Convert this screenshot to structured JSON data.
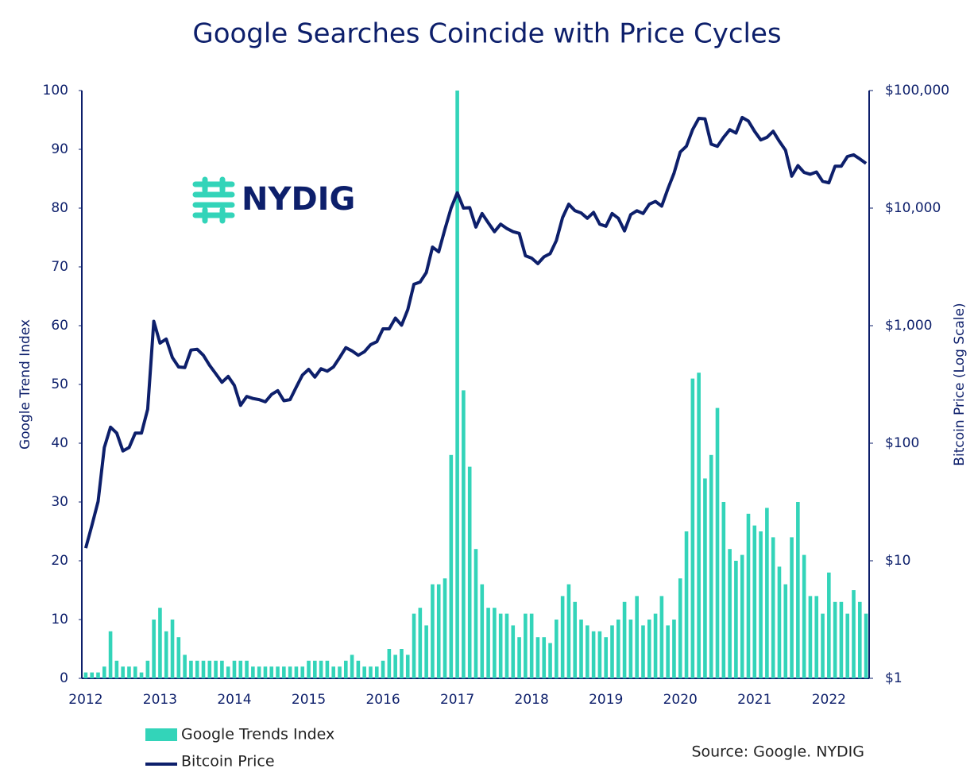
{
  "chart_data": {
    "type": "combo",
    "title": "Google Searches Coincide with Price Cycles",
    "logo": "NYDIG",
    "source": "Source: Google. NYDIG",
    "y_label": "Google Trend Index",
    "y2_label": "Bitcoin Price (Log Scale)",
    "categories": [
      "2012",
      null,
      null,
      null,
      null,
      null,
      null,
      null,
      null,
      null,
      null,
      null,
      "2013",
      null,
      null,
      null,
      null,
      null,
      null,
      null,
      null,
      null,
      null,
      null,
      "2014",
      null,
      null,
      null,
      null,
      null,
      null,
      null,
      null,
      null,
      null,
      null,
      "2015",
      null,
      null,
      null,
      null,
      null,
      null,
      null,
      null,
      null,
      null,
      null,
      "2016",
      null,
      null,
      null,
      null,
      null,
      null,
      null,
      null,
      null,
      null,
      null,
      "2017",
      null,
      null,
      null,
      null,
      null,
      null,
      null,
      null,
      null,
      null,
      null,
      "2018",
      null,
      null,
      null,
      null,
      null,
      null,
      null,
      null,
      null,
      null,
      null,
      "2019",
      null,
      null,
      null,
      null,
      null,
      null,
      null,
      null,
      null,
      null,
      null,
      "2020",
      null,
      null,
      null,
      null,
      null,
      null,
      null,
      null,
      null,
      null,
      null,
      "2021",
      null,
      null,
      null,
      null,
      null,
      null,
      null,
      null,
      null,
      null,
      null,
      "2022",
      null,
      null,
      null,
      null,
      null,
      null
    ],
    "ylim": [
      0,
      100
    ],
    "yticks": [
      0,
      10,
      20,
      30,
      40,
      50,
      60,
      70,
      80,
      90,
      100
    ],
    "y2lim": [
      1,
      100000
    ],
    "y2log": true,
    "y2ticks": [
      {
        "value": 1,
        "label": "$1"
      },
      {
        "value": 10,
        "label": "$10"
      },
      {
        "value": 100,
        "label": "$100"
      },
      {
        "value": 1000,
        "label": "$1,000"
      },
      {
        "value": 10000,
        "label": "$10,000"
      },
      {
        "value": 100000,
        "label": "$100,000"
      }
    ],
    "grid": false,
    "series": [
      {
        "name": "Google Trends Index",
        "type": "bar",
        "color": "#33d4b9",
        "values": [
          1,
          1,
          1,
          2,
          8,
          3,
          2,
          2,
          2,
          1,
          3,
          10,
          12,
          8,
          10,
          7,
          4,
          3,
          3,
          3,
          3,
          3,
          3,
          2,
          3,
          3,
          3,
          2,
          2,
          2,
          2,
          2,
          2,
          2,
          2,
          2,
          3,
          3,
          3,
          3,
          2,
          2,
          3,
          4,
          3,
          2,
          2,
          2,
          3,
          5,
          4,
          5,
          4,
          11,
          12,
          9,
          16,
          16,
          17,
          38,
          100,
          49,
          36,
          22,
          16,
          12,
          12,
          11,
          11,
          9,
          7,
          11,
          11,
          7,
          7,
          6,
          10,
          14,
          16,
          13,
          10,
          9,
          8,
          8,
          7,
          9,
          10,
          13,
          10,
          14,
          9,
          10,
          11,
          14,
          9,
          10,
          17,
          25,
          51,
          52,
          34,
          38,
          46,
          30,
          22,
          20,
          21,
          28,
          26,
          25,
          29,
          24,
          19,
          16,
          24,
          30,
          21,
          14,
          14,
          11,
          18,
          13,
          13,
          11,
          15,
          13,
          11
        ]
      },
      {
        "name": "Bitcoin Price",
        "type": "line",
        "axis": "y2",
        "color": "#0d1f6b",
        "values": [
          12.8,
          20,
          32,
          92,
          137,
          122,
          86,
          92,
          122,
          122,
          195,
          1090,
          710,
          770,
          535,
          445,
          440,
          620,
          630,
          560,
          460,
          390,
          330,
          370,
          310,
          210,
          250,
          240,
          235,
          225,
          260,
          280,
          230,
          235,
          300,
          380,
          425,
          365,
          430,
          410,
          445,
          535,
          650,
          610,
          560,
          600,
          690,
          730,
          940,
          940,
          1160,
          1010,
          1370,
          2250,
          2350,
          2830,
          4660,
          4240,
          6600,
          10000,
          13500,
          10000,
          10100,
          6900,
          9000,
          7500,
          6300,
          7300,
          6700,
          6300,
          6100,
          3930,
          3750,
          3370,
          3850,
          4100,
          5300,
          8300,
          10800,
          9500,
          9100,
          8200,
          9200,
          7300,
          7000,
          9000,
          8200,
          6400,
          8800,
          9500,
          9000,
          10800,
          11400,
          10400,
          14600,
          19800,
          30000,
          33600,
          46500,
          58000,
          57500,
          35000,
          33500,
          40000,
          46500,
          43500,
          59000,
          55000,
          45000,
          38000,
          40000,
          45000,
          37000,
          31000,
          18700,
          23000,
          20100,
          19400,
          20300,
          16900,
          16400,
          22700,
          22700,
          27500,
          28400,
          26200,
          24000
        ]
      }
    ]
  }
}
